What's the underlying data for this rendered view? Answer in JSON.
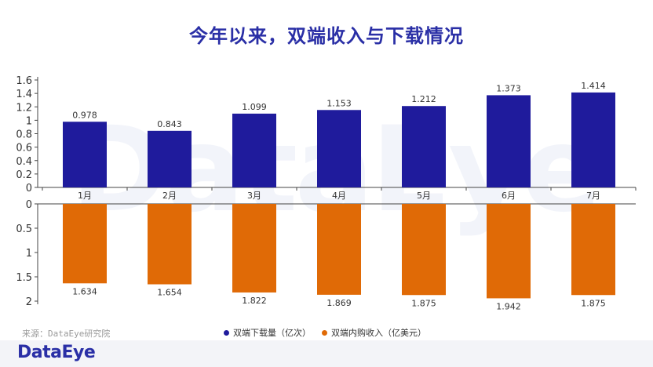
{
  "title": "今年以来，双端收入与下载情况",
  "watermark": "DataEye",
  "source": "来源：DataEye研究院",
  "footer_logo": "DataEye",
  "colors": {
    "downloads": "#1f1b9c",
    "revenue": "#e06a06",
    "title": "#2a2fa6"
  },
  "chart_data": [
    {
      "type": "bar",
      "categories": [
        "1月",
        "2月",
        "3月",
        "4月",
        "5月",
        "6月",
        "7月"
      ],
      "series": [
        {
          "name": "双端下载量（亿次）",
          "values": [
            0.978,
            0.843,
            1.099,
            1.153,
            1.212,
            1.373,
            1.414
          ]
        }
      ],
      "value_labels": [
        "0.978",
        "0.843",
        "1.099",
        "1.153",
        "1.212",
        "1.373",
        "1.414"
      ],
      "ylim": [
        0,
        1.6
      ],
      "yticks": [
        "0",
        "0.2",
        "0.4",
        "0.6",
        "0.8",
        "1",
        "1.2",
        "1.4",
        "1.6"
      ]
    },
    {
      "type": "bar",
      "orientation": "downward",
      "categories": [
        "1月",
        "2月",
        "3月",
        "4月",
        "5月",
        "6月",
        "7月"
      ],
      "series": [
        {
          "name": "双端内购收入（亿美元）",
          "values": [
            1.634,
            1.654,
            1.822,
            1.869,
            1.875,
            1.942,
            1.875
          ]
        }
      ],
      "value_labels": [
        "1.634",
        "1.654",
        "1.822",
        "1.869",
        "1.875",
        "1.942",
        "1.875"
      ],
      "ylim": [
        0,
        2
      ],
      "yticks": [
        "0",
        "0.5",
        "1",
        "1.5",
        "2"
      ]
    }
  ]
}
